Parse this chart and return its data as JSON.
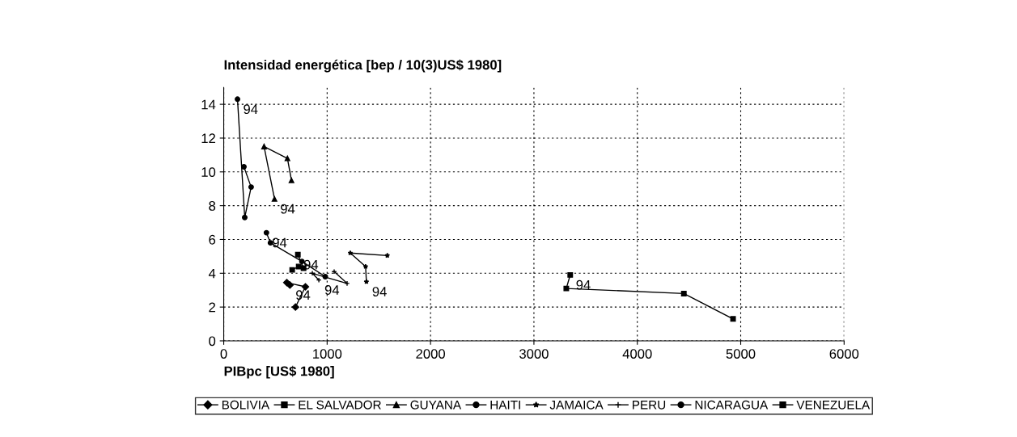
{
  "chart_data": {
    "type": "line",
    "title": "Intensidad energética [bep / 10(3)US$ 1980]",
    "xlabel": "PIBpc [US$ 1980]",
    "xlim": [
      0,
      6000
    ],
    "xticks": [
      0,
      1000,
      2000,
      3000,
      4000,
      5000,
      6000
    ],
    "ylim": [
      0,
      15
    ],
    "yticks": [
      0,
      2,
      4,
      6,
      8,
      10,
      12,
      14
    ],
    "grid": true,
    "legend": "bottom",
    "series": [
      {
        "name": "BOLIVIA",
        "color": "#000000",
        "marker": "diamond",
        "x": [
          694,
          790,
          610,
          640
        ],
        "values": [
          2.0,
          3.2,
          3.45,
          3.3
        ]
      },
      {
        "name": "EL SALVADOR",
        "color": "#000000",
        "marker": "square",
        "x": [
          662,
          725,
          772,
          717
        ],
        "values": [
          4.2,
          4.4,
          4.3,
          5.1
        ]
      },
      {
        "name": "GUYANA",
        "color": "#000000",
        "marker": "triangle",
        "x": [
          655,
          616,
          390,
          491
        ],
        "values": [
          9.5,
          10.8,
          11.5,
          8.4
        ]
      },
      {
        "name": "HAITI",
        "color": "#000000",
        "marker": "circle",
        "x": [
          195,
          265,
          203,
          133
        ],
        "values": [
          10.3,
          9.1,
          7.3,
          14.3
        ]
      },
      {
        "name": "JAMAICA",
        "color": "#000000",
        "marker": "star",
        "x": [
          1582,
          1224,
          1372,
          1380
        ],
        "values": [
          5.05,
          5.2,
          4.4,
          3.5
        ]
      },
      {
        "name": "PERU",
        "color": "#000000",
        "marker": "cross",
        "x": [
          1068,
          1193,
          857,
          920
        ],
        "values": [
          4.1,
          3.4,
          4.0,
          3.6
        ]
      },
      {
        "name": "NICARAGUA",
        "color": "#000000",
        "marker": "circle",
        "x": [
          982,
          756,
          452,
          413
        ],
        "values": [
          3.8,
          4.7,
          5.8,
          6.4
        ]
      },
      {
        "name": "VENEZUELA",
        "color": "#000000",
        "marker": "square",
        "x": [
          4926,
          4450,
          3313,
          3351
        ],
        "values": [
          1.3,
          2.8,
          3.1,
          3.9
        ]
      }
    ],
    "annotations": [
      {
        "text": "94",
        "x": 133,
        "y": 14.3
      },
      {
        "text": "94",
        "x": 491,
        "y": 8.4
      },
      {
        "text": "94",
        "x": 413,
        "y": 6.4
      },
      {
        "text": "94",
        "x": 717,
        "y": 5.1
      },
      {
        "text": "94",
        "x": 640,
        "y": 3.3
      },
      {
        "text": "94",
        "x": 920,
        "y": 3.6
      },
      {
        "text": "94",
        "x": 1380,
        "y": 3.5
      },
      {
        "text": "94",
        "x": 3351,
        "y": 3.9
      }
    ]
  }
}
